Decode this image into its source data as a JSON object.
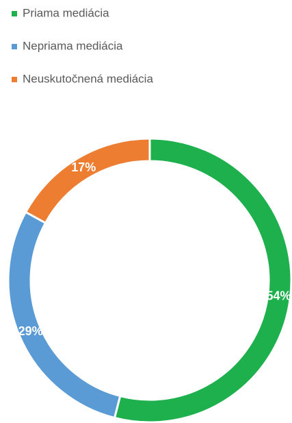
{
  "chart_data": {
    "type": "donut",
    "categories": [
      "Priama mediácia",
      "Nepriama mediácia",
      "Neuskutočnená mediácia"
    ],
    "values": [
      54,
      29,
      17
    ],
    "value_labels": [
      "54%",
      "29%",
      "17%"
    ],
    "colors": [
      "#1db04d",
      "#5b9bd5",
      "#ed7d31"
    ],
    "legend": "top-left"
  }
}
